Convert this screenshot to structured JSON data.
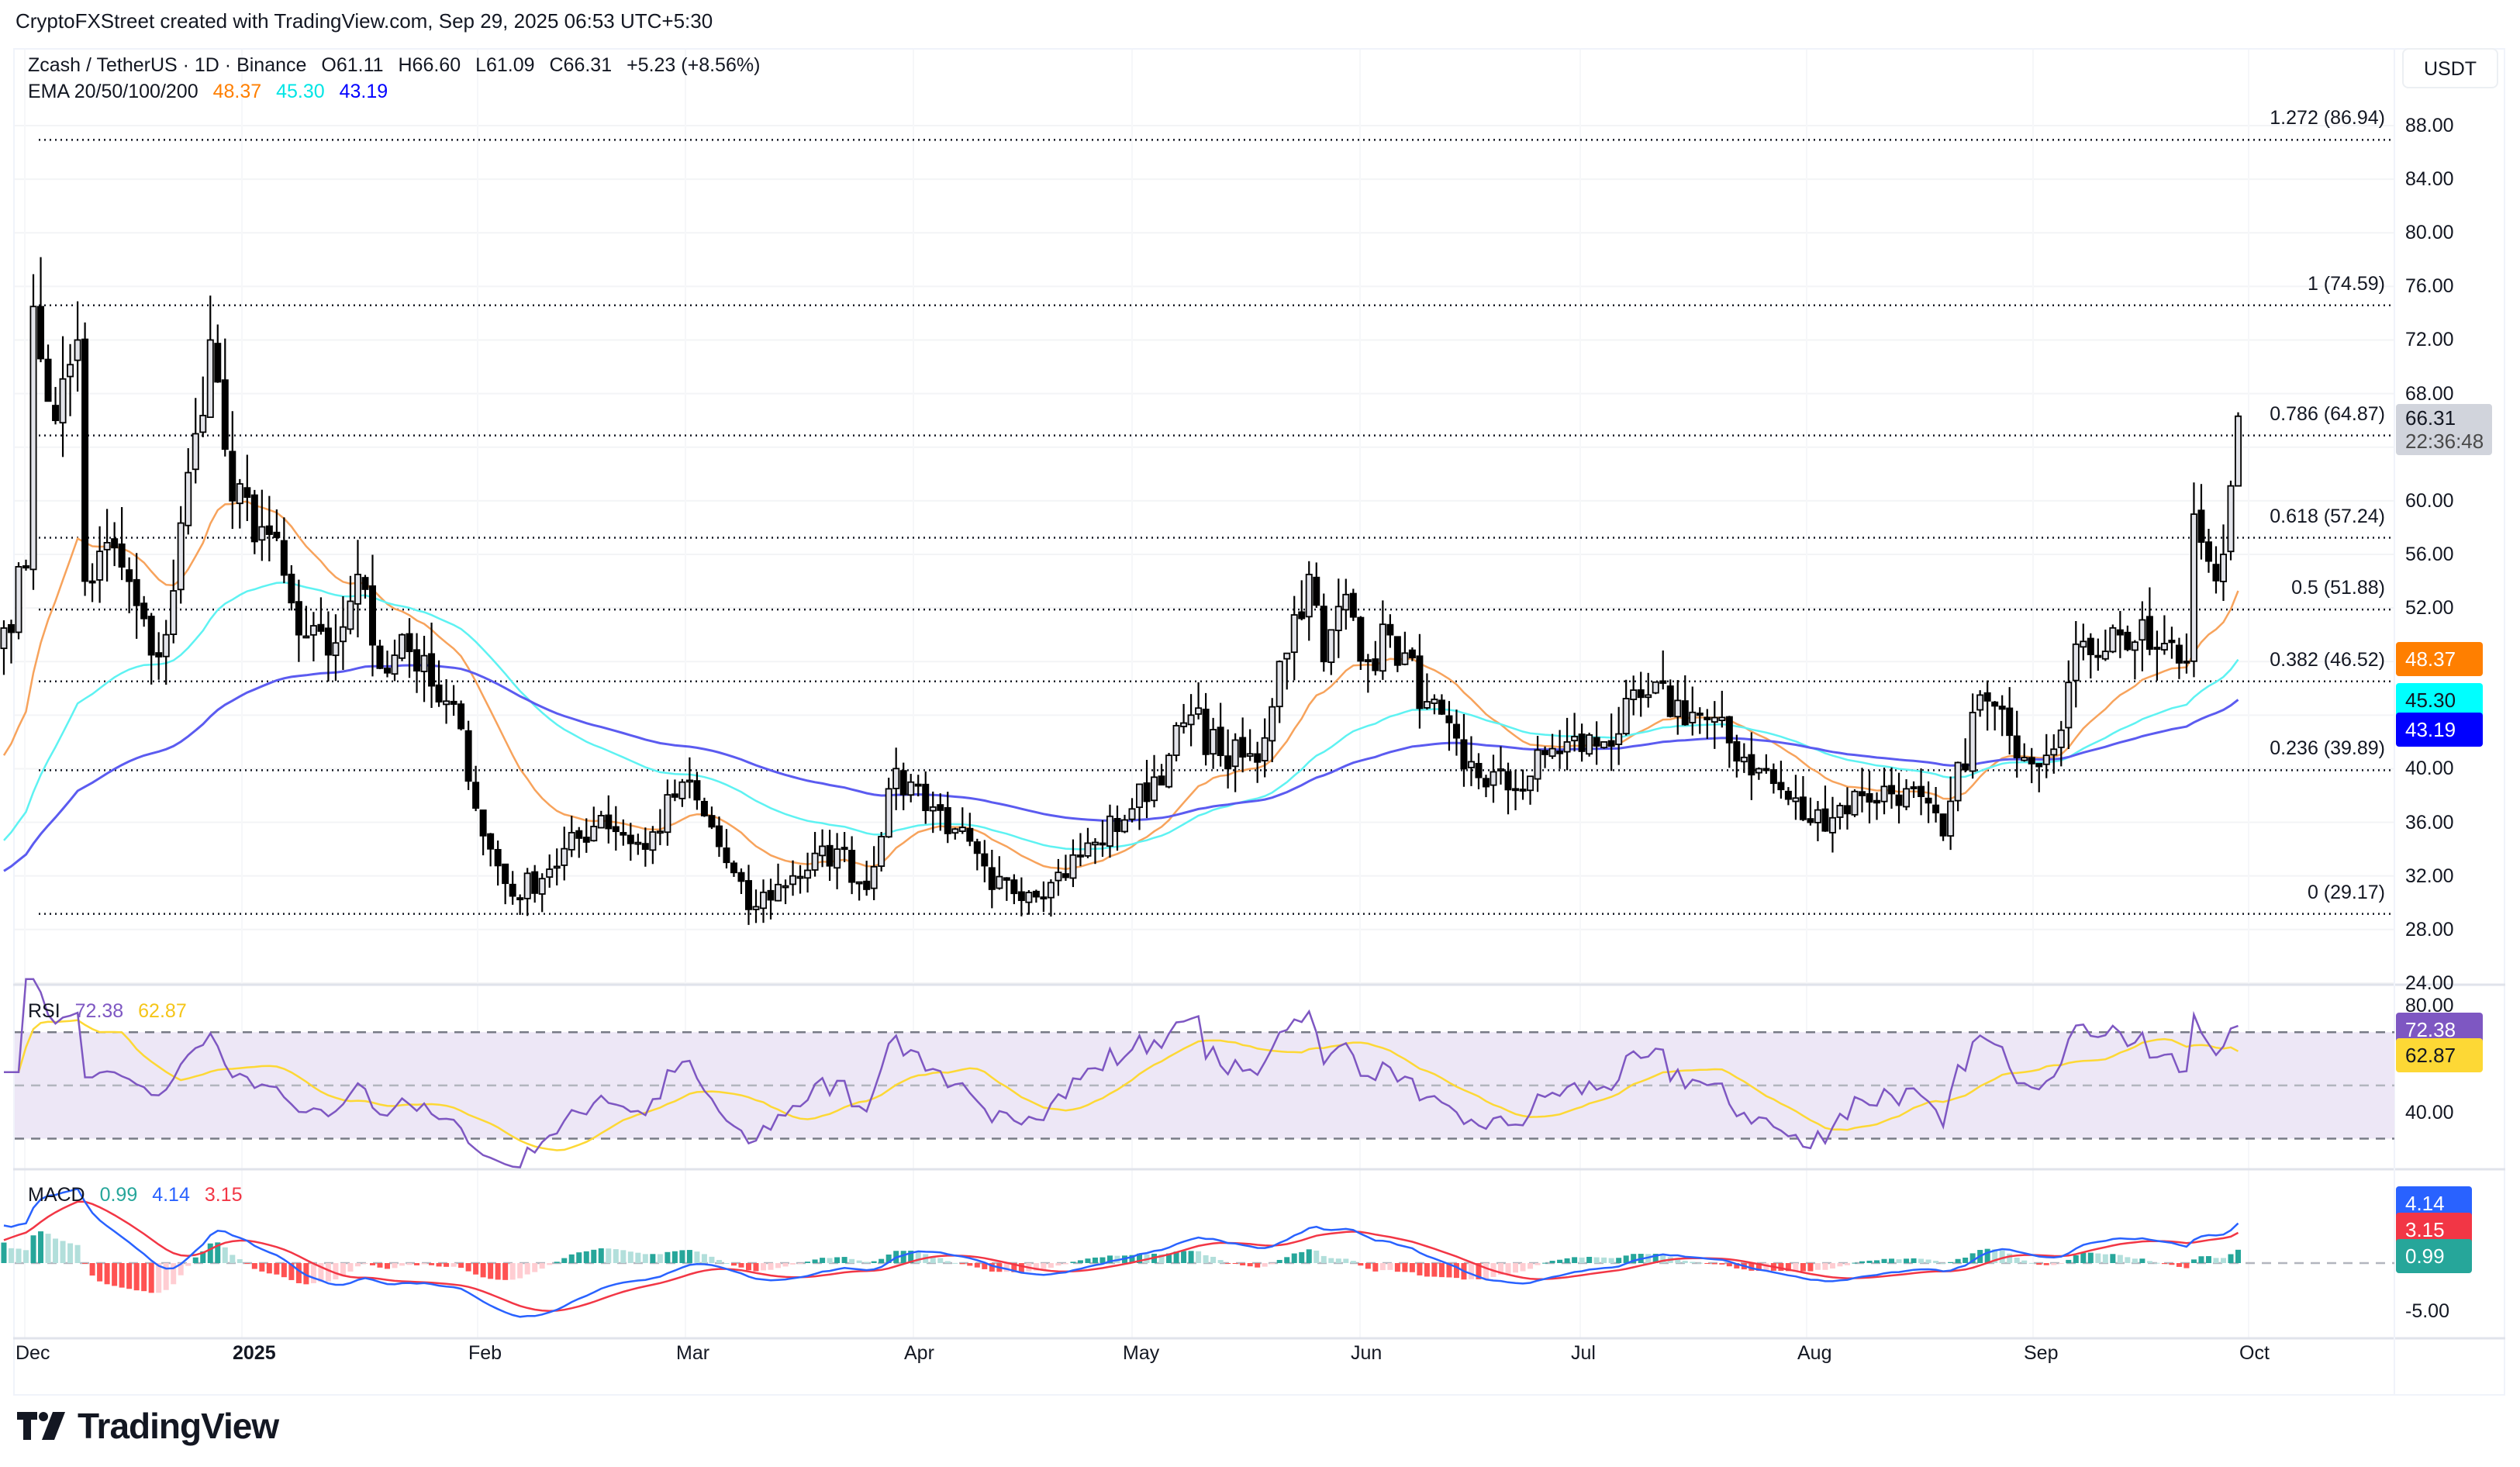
{
  "attribution": "CryptoFXStreet created with TradingView.com, Sep 29, 2025 06:53 UTC+5:30",
  "header": {
    "symbol": "Zcash / TetherUS · 1D · Binance",
    "open": "O61.11",
    "high": "H66.60",
    "low": "L61.09",
    "close": "C66.31",
    "change": "+5.23 (+8.56%)",
    "ema_label": "EMA 20/50/100/200",
    "ema20": "48.37",
    "ema50": "45.30",
    "ema100": "43.19"
  },
  "currency_button": "USDT",
  "price_axis": [
    "88.00",
    "84.00",
    "80.00",
    "76.00",
    "72.00",
    "68.00",
    "64.00",
    "60.00",
    "56.00",
    "52.00",
    "48.00",
    "44.00",
    "40.00",
    "36.00",
    "32.00",
    "28.00",
    "24.00"
  ],
  "price_tags": {
    "last_price": "66.31",
    "countdown": "22:36:48",
    "ema20": "48.37",
    "ema50": "45.30",
    "ema100": "43.19"
  },
  "fib_levels": [
    {
      "label": "1.272 (86.94)",
      "price": 86.94
    },
    {
      "label": "1 (74.59)",
      "price": 74.59
    },
    {
      "label": "0.786 (64.87)",
      "price": 64.87
    },
    {
      "label": "0.618 (57.24)",
      "price": 57.24
    },
    {
      "label": "0.5 (51.88)",
      "price": 51.88
    },
    {
      "label": "0.382 (46.52)",
      "price": 46.52
    },
    {
      "label": "0.236 (39.89)",
      "price": 39.89
    },
    {
      "label": "0 (29.17)",
      "price": 29.17
    }
  ],
  "rsi": {
    "label": "RSI",
    "value": "72.38",
    "ma": "62.87",
    "axis": [
      "80.00",
      "40.00"
    ]
  },
  "macd": {
    "label": "MACD",
    "histogram": "0.99",
    "macd": "4.14",
    "signal": "3.15",
    "axis": [
      "0.00",
      "-5.00"
    ]
  },
  "time_axis": [
    {
      "label": "Dec",
      "x": 20,
      "bold": false
    },
    {
      "label": "2025",
      "x": 300,
      "bold": true
    },
    {
      "label": "Feb",
      "x": 604,
      "bold": false
    },
    {
      "label": "Mar",
      "x": 872,
      "bold": false
    },
    {
      "label": "Apr",
      "x": 1166,
      "bold": false
    },
    {
      "label": "May",
      "x": 1448,
      "bold": false
    },
    {
      "label": "Jun",
      "x": 1742,
      "bold": false
    },
    {
      "label": "Jul",
      "x": 2026,
      "bold": false
    },
    {
      "label": "Aug",
      "x": 2318,
      "bold": false
    },
    {
      "label": "Sep",
      "x": 2610,
      "bold": false
    },
    {
      "label": "Oct",
      "x": 2888,
      "bold": false
    }
  ],
  "colors": {
    "ema20": "#f7a35c",
    "ema50": "#5ef2f2",
    "ema100": "#5b5bf0",
    "ema20_tag": "#ff7f00",
    "ema50_tag": "#00ffff",
    "ema100_tag": "#0000ff",
    "rsi_line": "#7e57c2",
    "rsi_ma": "#fdd835",
    "rsi_band": "#ede7f6",
    "macd_line": "#2962ff",
    "signal_line": "#f23645",
    "hist_up_strong": "#26a69a",
    "hist_up_weak": "#b2dfdb",
    "hist_down_strong": "#ff5252",
    "hist_down_weak": "#ffcdd2",
    "last_price_tag": "#d1d4dc"
  },
  "logo": "TradingView",
  "chart_data": {
    "type": "candlestick",
    "title": "Zcash / TetherUS · 1D · Binance",
    "xlabel": "",
    "ylabel": "USDT",
    "ylim": [
      24,
      88
    ],
    "x_ticks": [
      "Dec",
      "2025",
      "Feb",
      "Mar",
      "Apr",
      "May",
      "Jun",
      "Jul",
      "Aug",
      "Sep",
      "Oct"
    ],
    "y_ticks": [
      88,
      84,
      80,
      76,
      72,
      68,
      64,
      60,
      56,
      52,
      48,
      44,
      40,
      36,
      32,
      28,
      24
    ],
    "grid": true,
    "last_candle": {
      "open": 61.11,
      "high": 66.6,
      "low": 61.09,
      "close": 66.31,
      "change": 5.23,
      "change_pct": 8.56
    },
    "close_keypoints": [
      {
        "date": "2024-11-29",
        "close": 50.5
      },
      {
        "date": "2024-12-02",
        "close": 55.0
      },
      {
        "date": "2024-12-03",
        "close": 74.5
      },
      {
        "date": "2024-12-06",
        "close": 66.0
      },
      {
        "date": "2024-12-09",
        "close": 72.0
      },
      {
        "date": "2024-12-10",
        "close": 54.0
      },
      {
        "date": "2024-12-14",
        "close": 56.5
      },
      {
        "date": "2024-12-19",
        "close": 48.5
      },
      {
        "date": "2024-12-21",
        "close": 50.0
      },
      {
        "date": "2024-12-25",
        "close": 65.0
      },
      {
        "date": "2024-12-27",
        "close": 72.0
      },
      {
        "date": "2024-12-30",
        "close": 60.0
      },
      {
        "date": "2025-01-04",
        "close": 57.5
      },
      {
        "date": "2025-01-08",
        "close": 50.0
      },
      {
        "date": "2025-01-12",
        "close": 48.5
      },
      {
        "date": "2025-01-15",
        "close": 52.5
      },
      {
        "date": "2025-01-16",
        "close": 54.5
      },
      {
        "date": "2025-01-19",
        "close": 47.5
      },
      {
        "date": "2025-01-22",
        "close": 50.0
      },
      {
        "date": "2025-01-27",
        "close": 45.0
      },
      {
        "date": "2025-01-30",
        "close": 43.0
      },
      {
        "date": "2025-02-02",
        "close": 35.0
      },
      {
        "date": "2025-02-06",
        "close": 30.5
      },
      {
        "date": "2025-02-11",
        "close": 32.5
      },
      {
        "date": "2025-02-18",
        "close": 36.5
      },
      {
        "date": "2025-02-24",
        "close": 34.0
      },
      {
        "date": "2025-03-01",
        "close": 39.0
      },
      {
        "date": "2025-03-04",
        "close": 36.5
      },
      {
        "date": "2025-03-10",
        "close": 29.5
      },
      {
        "date": "2025-03-16",
        "close": 32.0
      },
      {
        "date": "2025-03-22",
        "close": 34.0
      },
      {
        "date": "2025-03-26",
        "close": 31.0
      },
      {
        "date": "2025-03-29",
        "close": 38.5
      },
      {
        "date": "2025-04-01",
        "close": 39.0
      },
      {
        "date": "2025-04-07",
        "close": 35.5
      },
      {
        "date": "2025-04-12",
        "close": 31.0
      },
      {
        "date": "2025-04-20",
        "close": 31.5
      },
      {
        "date": "2025-04-26",
        "close": 34.5
      },
      {
        "date": "2025-05-01",
        "close": 37.0
      },
      {
        "date": "2025-05-06",
        "close": 41.0
      },
      {
        "date": "2025-05-09",
        "close": 44.0
      },
      {
        "date": "2025-05-13",
        "close": 41.0
      },
      {
        "date": "2025-05-18",
        "close": 40.5
      },
      {
        "date": "2025-05-21",
        "close": 48.0
      },
      {
        "date": "2025-05-25",
        "close": 54.5
      },
      {
        "date": "2025-05-27",
        "close": 48.0
      },
      {
        "date": "2025-05-30",
        "close": 53.0
      },
      {
        "date": "2025-06-02",
        "close": 48.0
      },
      {
        "date": "2025-06-05",
        "close": 50.0
      },
      {
        "date": "2025-06-10",
        "close": 45.0
      },
      {
        "date": "2025-06-15",
        "close": 40.0
      },
      {
        "date": "2025-06-22",
        "close": 38.5
      },
      {
        "date": "2025-06-27",
        "close": 41.5
      },
      {
        "date": "2025-07-04",
        "close": 42.0
      },
      {
        "date": "2025-07-10",
        "close": 45.5
      },
      {
        "date": "2025-07-17",
        "close": 44.0
      },
      {
        "date": "2025-07-25",
        "close": 40.0
      },
      {
        "date": "2025-08-01",
        "close": 36.0
      },
      {
        "date": "2025-08-08",
        "close": 38.0
      },
      {
        "date": "2025-08-14",
        "close": 38.5
      },
      {
        "date": "2025-08-19",
        "close": 35.0
      },
      {
        "date": "2025-08-24",
        "close": 45.5
      },
      {
        "date": "2025-08-28",
        "close": 42.5
      },
      {
        "date": "2025-09-02",
        "close": 41.0
      },
      {
        "date": "2025-09-07",
        "close": 49.5
      },
      {
        "date": "2025-09-12",
        "close": 50.0
      },
      {
        "date": "2025-09-17",
        "close": 49.0
      },
      {
        "date": "2025-09-21",
        "close": 48.0
      },
      {
        "date": "2025-09-22",
        "close": 59.0
      },
      {
        "date": "2025-09-24",
        "close": 55.5
      },
      {
        "date": "2025-09-26",
        "close": 56.0
      },
      {
        "date": "2025-09-27",
        "close": 61.11
      },
      {
        "date": "2025-09-28",
        "close": 66.31
      }
    ],
    "series": [
      {
        "name": "EMA 20",
        "last": 48.37
      },
      {
        "name": "EMA 50",
        "last": 45.3
      },
      {
        "name": "EMA 100",
        "last": 43.19
      },
      {
        "name": "RSI",
        "last": 72.38
      },
      {
        "name": "RSI MA",
        "last": 62.87
      },
      {
        "name": "MACD histogram",
        "last": 0.99
      },
      {
        "name": "MACD",
        "last": 4.14
      },
      {
        "name": "Signal",
        "last": 3.15
      }
    ]
  }
}
